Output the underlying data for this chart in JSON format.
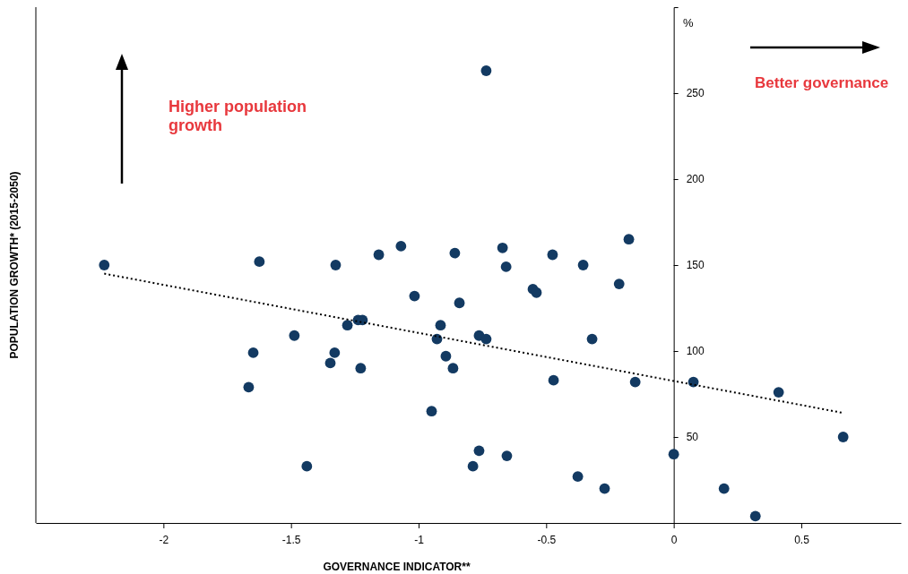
{
  "chart_data": {
    "type": "scatter",
    "xlabel": "GOVERNANCE INDICATOR**",
    "ylabel": "POPULATION GROWTH* (2015-2050)",
    "annotations": [
      "%",
      "Higher population growth",
      "Better governance"
    ],
    "xlim": [
      -2.5,
      0.89
    ],
    "ylim": [
      0,
      300
    ],
    "xticks": [
      -2,
      -1.5,
      -1,
      -0.5,
      0,
      0.5
    ],
    "yticks": [
      50,
      100,
      150,
      200,
      250
    ],
    "grid": false,
    "series": [
      {
        "marker": "circle",
        "color": "#133a62",
        "x": [
          -2.232,
          -1.624,
          -1.325,
          -1.156,
          -1.069,
          -0.858,
          -0.671,
          -0.657,
          -0.475,
          -0.355,
          -0.176,
          -0.214,
          -1.016,
          -0.84,
          -0.552,
          -0.538,
          -1.237,
          -1.22,
          -1.279,
          -1.487,
          -0.914,
          -0.928,
          -0.763,
          -0.735,
          -0.32,
          -1.648,
          -1.329,
          -1.346,
          -1.227,
          -0.893,
          -0.865,
          -1.666,
          -0.471,
          -0.151,
          0.077,
          0.411,
          -0.949,
          0.664,
          -0.763,
          -1.438,
          -0.787,
          -0.654,
          -0.376,
          -0.271,
          0,
          0.197,
          0.32,
          -0.735
        ],
        "values": [
          150,
          152,
          150,
          156,
          161,
          157,
          160,
          149,
          156,
          150,
          165,
          139,
          132,
          128,
          136,
          134,
          118,
          118,
          115,
          109,
          115,
          107,
          109,
          107,
          107,
          99,
          99,
          93,
          90,
          97,
          90,
          79,
          83,
          82,
          82,
          76,
          65,
          50,
          42,
          33,
          33,
          39,
          27,
          20,
          40,
          20,
          4,
          263
        ]
      },
      {
        "type": "line",
        "color": "#000000",
        "line_style": "dotted",
        "x": [
          -2.232,
          0.664
        ],
        "values": [
          145,
          64
        ]
      }
    ]
  }
}
